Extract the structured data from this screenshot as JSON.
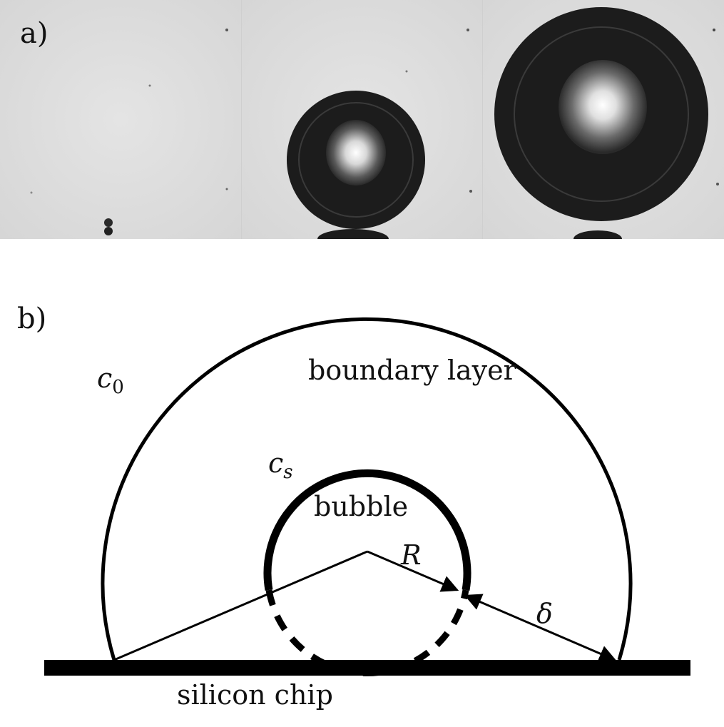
{
  "panel_a": {
    "label": "a)",
    "frames": [
      {
        "description": "nucleation"
      },
      {
        "description": "small bubble"
      },
      {
        "description": "large bubble"
      }
    ],
    "colors": {
      "background": "#dcdcdc",
      "bubble": "#1c1c1c",
      "highlight": "#f4f4f4"
    }
  },
  "panel_b": {
    "label": "b)",
    "boundary_concentration": "c",
    "boundary_concentration_sub": "0",
    "surface_concentration": "c",
    "surface_concentration_sub": "s",
    "boundary_layer_label": "boundary layer",
    "bubble_label": "bubble",
    "radius_label": "R",
    "thickness_label": "δ",
    "substrate_label": "silicon chip",
    "colors": {
      "line": "#000000",
      "background": "#ffffff"
    }
  }
}
